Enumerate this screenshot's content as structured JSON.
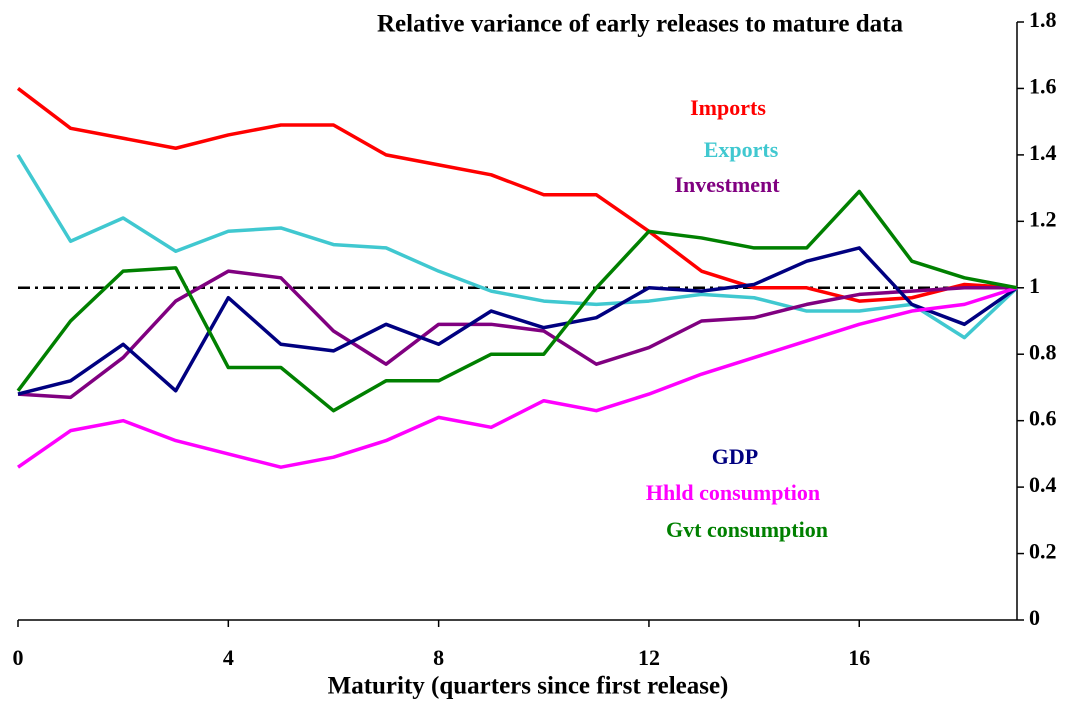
{
  "chart_data": {
    "type": "line",
    "title": "Relative variance of early releases to mature data",
    "x_label": "Maturity (quarters since first release)",
    "x": [
      0,
      1,
      2,
      3,
      4,
      5,
      6,
      7,
      8,
      9,
      10,
      11,
      12,
      13,
      14,
      15,
      16,
      17,
      18,
      19
    ],
    "xlim": [
      0,
      19
    ],
    "xticks": [
      0,
      4,
      8,
      12,
      16
    ],
    "ylim": [
      0,
      1.8
    ],
    "yticks": [
      0,
      0.2,
      0.4,
      0.6,
      0.8,
      1,
      1.2,
      1.4,
      1.6,
      1.8
    ],
    "y_axis_side": "right",
    "reference_line": 1,
    "series": [
      {
        "name": "Imports",
        "color": "#ff0000",
        "values": [
          1.6,
          1.48,
          1.45,
          1.42,
          1.46,
          1.49,
          1.49,
          1.4,
          1.37,
          1.34,
          1.28,
          1.28,
          1.17,
          1.05,
          1.0,
          1.0,
          0.96,
          0.97,
          1.01,
          1.0
        ]
      },
      {
        "name": "Exports",
        "color": "#40c8d0",
        "values": [
          1.4,
          1.14,
          1.21,
          1.11,
          1.17,
          1.18,
          1.13,
          1.12,
          1.05,
          0.99,
          0.96,
          0.95,
          0.96,
          0.98,
          0.97,
          0.93,
          0.93,
          0.95,
          0.85,
          1.0
        ]
      },
      {
        "name": "Investment",
        "color": "#800080",
        "values": [
          0.68,
          0.67,
          0.79,
          0.96,
          1.05,
          1.03,
          0.87,
          0.77,
          0.89,
          0.89,
          0.87,
          0.77,
          0.82,
          0.9,
          0.91,
          0.95,
          0.98,
          0.99,
          1.0,
          1.0
        ]
      },
      {
        "name": "GDP",
        "color": "#000080",
        "values": [
          0.68,
          0.72,
          0.83,
          0.69,
          0.97,
          0.83,
          0.81,
          0.89,
          0.83,
          0.93,
          0.88,
          0.91,
          1.0,
          0.99,
          1.01,
          1.08,
          1.12,
          0.95,
          0.89,
          1.0
        ]
      },
      {
        "name": "Hhld consumption",
        "color": "#ff00ff",
        "values": [
          0.46,
          0.57,
          0.6,
          0.54,
          0.5,
          0.46,
          0.49,
          0.54,
          0.61,
          0.58,
          0.66,
          0.63,
          0.68,
          0.74,
          0.79,
          0.84,
          0.89,
          0.93,
          0.95,
          1.0
        ]
      },
      {
        "name": "Gvt consumption",
        "color": "#008000",
        "values": [
          0.69,
          0.9,
          1.05,
          1.06,
          0.76,
          0.76,
          0.63,
          0.72,
          0.72,
          0.8,
          0.8,
          1.0,
          1.17,
          1.15,
          1.12,
          1.12,
          1.29,
          1.08,
          1.03,
          1.0
        ]
      }
    ]
  }
}
